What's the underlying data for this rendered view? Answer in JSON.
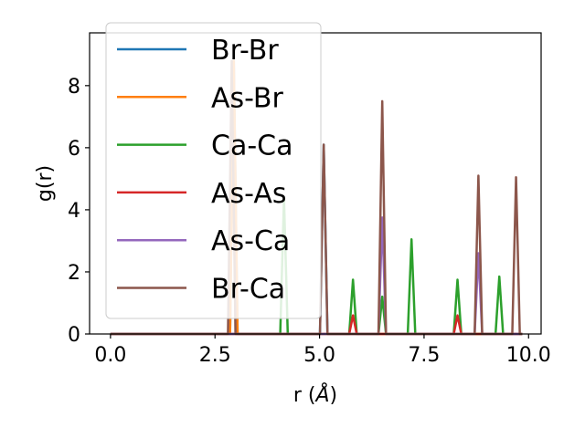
{
  "chart_data": {
    "type": "line",
    "xlabel": "r (",
    "xlabel_unit": "Å",
    "xlabel_close": ")",
    "ylabel": "g(r)",
    "xlim": [
      -0.5,
      10.3
    ],
    "ylim": [
      0,
      9.7
    ],
    "x_ticks": [
      0.0,
      2.5,
      5.0,
      7.5,
      10.0
    ],
    "x_tick_labels": [
      "0.0",
      "2.5",
      "5.0",
      "7.5",
      "10.0"
    ],
    "y_ticks": [
      0,
      2,
      4,
      6,
      8
    ],
    "y_tick_labels": [
      "0",
      "2",
      "4",
      "6",
      "8"
    ],
    "legend_position": "upper-left",
    "x_range": [
      0.0,
      9.85
    ],
    "series": [
      {
        "name": "Br-Br",
        "color": "#1f77b4",
        "peaks": [
          [
            2.95,
            8.8
          ],
          [
            5.1,
            6.1
          ]
        ]
      },
      {
        "name": "As-Br",
        "color": "#ff7f0e",
        "peaks": [
          [
            2.95,
            8.8
          ]
        ]
      },
      {
        "name": "Ca-Ca",
        "color": "#2ca02c",
        "peaks": [
          [
            4.15,
            4.4
          ],
          [
            5.8,
            1.75
          ],
          [
            6.5,
            1.2
          ],
          [
            7.2,
            3.05
          ],
          [
            8.3,
            1.75
          ],
          [
            9.3,
            1.85
          ]
        ]
      },
      {
        "name": "As-As",
        "color": "#d62728",
        "peaks": [
          [
            5.8,
            0.6
          ],
          [
            8.3,
            0.6
          ]
        ]
      },
      {
        "name": "As-Ca",
        "color": "#9467bd",
        "peaks": [
          [
            6.5,
            3.75
          ],
          [
            8.8,
            2.6
          ]
        ]
      },
      {
        "name": "Br-Ca",
        "color": "#8c564b",
        "peaks": [
          [
            2.9,
            8.8
          ],
          [
            5.1,
            6.1
          ],
          [
            6.5,
            7.5
          ],
          [
            8.8,
            5.1
          ],
          [
            9.7,
            5.05
          ]
        ]
      }
    ]
  }
}
